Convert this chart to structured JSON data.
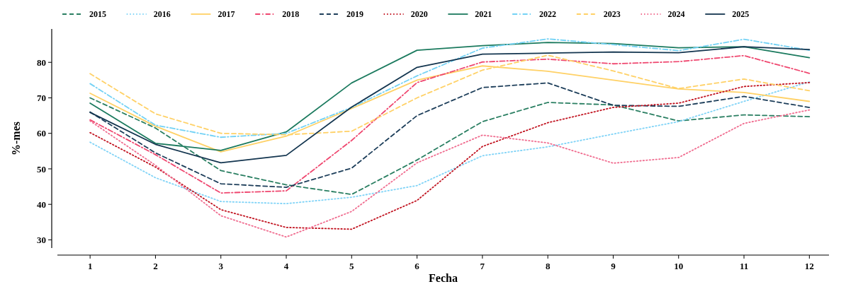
{
  "chart_data": {
    "type": "line",
    "xlabel": "Fecha",
    "ylabel": "%-mes",
    "x": [
      1,
      2,
      3,
      4,
      5,
      6,
      7,
      8,
      9,
      10,
      11,
      12
    ],
    "xlim": [
      0.5,
      12.3
    ],
    "xticks": [
      1,
      2,
      3,
      4,
      5,
      6,
      7,
      8,
      9,
      10,
      11,
      12
    ],
    "ylim": [
      27.7,
      89.4
    ],
    "yticks": [
      30,
      40,
      50,
      60,
      70,
      80
    ],
    "grid": false,
    "legend": "top",
    "series": [
      {
        "name": "2015",
        "color": "#2a7f62",
        "line_style": "dashed",
        "values": [
          70,
          61.5,
          49.5,
          45.5,
          42.8,
          52.5,
          63.3,
          68.7,
          68,
          63.5,
          65.2,
          64.7
        ]
      },
      {
        "name": "2016",
        "color": "#7fd3f7",
        "line_style": "dotted",
        "values": [
          57.5,
          47.5,
          40.8,
          40.2,
          42,
          45.3,
          53.7,
          56.2,
          59.8,
          63.3,
          69,
          74.5
        ]
      },
      {
        "name": "2017",
        "color": "#ffd166",
        "line_style": "solid",
        "values": [
          71.3,
          62,
          54.8,
          59.2,
          67,
          75,
          79,
          77.5,
          75,
          72.5,
          71.5,
          69
        ]
      },
      {
        "name": "2018",
        "color": "#ef476f",
        "line_style": "dashdot",
        "values": [
          63.8,
          54,
          43.2,
          43.8,
          58,
          74.3,
          80.1,
          80.9,
          79.6,
          80.2,
          81.9,
          76.9
        ]
      },
      {
        "name": "2019",
        "color": "#1d3e5a",
        "line_style": "dashed",
        "values": [
          66,
          54.5,
          45.8,
          44.8,
          50.2,
          65,
          72.9,
          74.2,
          67.9,
          67.6,
          70.4,
          67.3
        ]
      },
      {
        "name": "2020",
        "color": "#c1121f",
        "line_style": "dotted",
        "values": [
          60.2,
          50.5,
          38.5,
          33.5,
          33,
          41.1,
          56.3,
          63,
          67.3,
          68.5,
          73.2,
          74.3
        ]
      },
      {
        "name": "2021",
        "color": "#1b7a5e",
        "line_style": "solid",
        "values": [
          68.5,
          57.2,
          55.2,
          60.4,
          74.2,
          83.4,
          84.7,
          85.6,
          85.3,
          84.1,
          84.4,
          81.3
        ]
      },
      {
        "name": "2022",
        "color": "#73d2f5",
        "line_style": "dashdot",
        "values": [
          74,
          62.3,
          58.9,
          60,
          67.3,
          76.2,
          84,
          86.6,
          85,
          83.3,
          86.5,
          83.4
        ]
      },
      {
        "name": "2023",
        "color": "#ffd166",
        "line_style": "dashed",
        "values": [
          76.8,
          65.5,
          60,
          59.6,
          60.6,
          70,
          77.8,
          82,
          77.6,
          72.6,
          75.3,
          72
        ]
      },
      {
        "name": "2024",
        "color": "#f06c8f",
        "line_style": "dotted",
        "values": [
          63.5,
          51,
          36.8,
          30.8,
          38,
          51.7,
          59.5,
          57.3,
          51.6,
          53.2,
          62.8,
          66.6
        ]
      },
      {
        "name": "2025",
        "color": "#13354f",
        "line_style": "solid",
        "values": [
          65.9,
          56.9,
          51.7,
          53.8,
          67.4,
          78.6,
          82.3,
          82.6,
          82.9,
          82.7,
          84.4,
          83.6
        ]
      }
    ]
  }
}
